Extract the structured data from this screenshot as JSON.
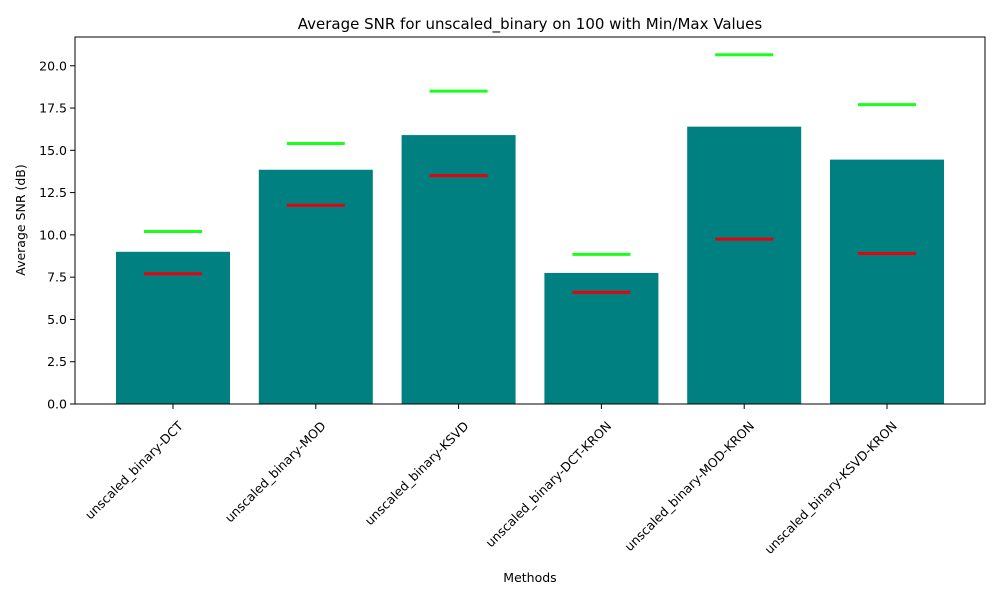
{
  "chart_data": {
    "type": "bar",
    "title": "Average SNR for unscaled_binary on 100 with Min/Max Values",
    "xlabel": "Methods",
    "ylabel": "Average SNR (dB)",
    "categories": [
      "unscaled_binary-DCT",
      "unscaled_binary-MOD",
      "unscaled_binary-KSVD",
      "unscaled_binary-DCT-KRON",
      "unscaled_binary-MOD-KRON",
      "unscaled_binary-KSVD-KRON"
    ],
    "values": [
      9.0,
      13.85,
      15.9,
      7.75,
      16.4,
      14.45
    ],
    "min_values": [
      7.7,
      11.75,
      13.5,
      6.6,
      9.75,
      8.9
    ],
    "max_values": [
      10.2,
      15.4,
      18.5,
      8.85,
      20.65,
      17.7
    ],
    "ylim": [
      0,
      21.7
    ],
    "yticks": [
      0.0,
      2.5,
      5.0,
      7.5,
      10.0,
      12.5,
      15.0,
      17.5,
      20.0
    ],
    "ytick_labels": [
      "0.0",
      "2.5",
      "5.0",
      "7.5",
      "10.0",
      "12.5",
      "15.0",
      "17.5",
      "20.0"
    ],
    "grid": false,
    "colors": {
      "bar": "#008080",
      "min_marker": "#e8000b",
      "max_marker": "#1aff1a"
    }
  }
}
